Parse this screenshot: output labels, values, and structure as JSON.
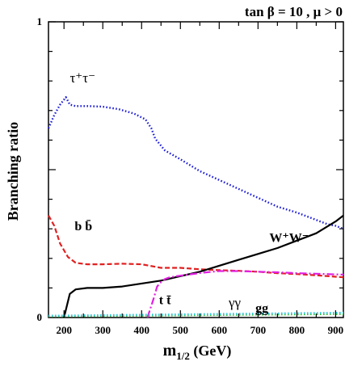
{
  "chart_data": {
    "type": "line",
    "title": "tan β = 10 , μ > 0",
    "xlabel_main": "m",
    "xlabel_sub": "1/2",
    "xlabel_unit": " (GeV)",
    "ylabel": "Branching ratio",
    "xlim": [
      160,
      920
    ],
    "ylim": [
      0,
      1
    ],
    "x_ticks": [
      200,
      300,
      400,
      500,
      600,
      700,
      800,
      900
    ],
    "y_tick_labels": [
      "0",
      "1"
    ],
    "grid": false,
    "series": [
      {
        "name": "τ⁺τ⁻",
        "color": "#1f1fd6",
        "style": "dotted",
        "x": [
          160,
          175,
          190,
          205,
          215,
          230,
          260,
          300,
          340,
          380,
          410,
          425,
          435,
          460,
          500,
          550,
          600,
          650,
          700,
          750,
          800,
          850,
          880,
          900,
          920
        ],
        "y": [
          0.64,
          0.685,
          0.72,
          0.745,
          0.72,
          0.715,
          0.715,
          0.713,
          0.705,
          0.69,
          0.67,
          0.64,
          0.605,
          0.565,
          0.535,
          0.495,
          0.465,
          0.435,
          0.405,
          0.375,
          0.355,
          0.33,
          0.315,
          0.31,
          0.3
        ]
      },
      {
        "name": "b b̄",
        "color": "#e02020",
        "style": "dashed",
        "x": [
          160,
          175,
          190,
          210,
          230,
          260,
          300,
          350,
          400,
          450,
          500,
          550,
          600,
          650,
          700,
          750,
          800,
          850,
          900,
          920
        ],
        "y": [
          0.345,
          0.31,
          0.25,
          0.205,
          0.185,
          0.18,
          0.18,
          0.182,
          0.18,
          0.168,
          0.168,
          0.163,
          0.16,
          0.158,
          0.155,
          0.15,
          0.147,
          0.143,
          0.138,
          0.136
        ]
      },
      {
        "name": "W⁺W⁻",
        "color": "#000000",
        "style": "solid",
        "x": [
          200,
          215,
          230,
          260,
          300,
          350,
          400,
          450,
          500,
          550,
          600,
          650,
          700,
          750,
          800,
          850,
          900,
          920
        ],
        "y": [
          0.0,
          0.08,
          0.095,
          0.1,
          0.1,
          0.105,
          0.115,
          0.125,
          0.14,
          0.155,
          0.175,
          0.195,
          0.215,
          0.235,
          0.26,
          0.285,
          0.325,
          0.345
        ]
      },
      {
        "name": "t t̄",
        "color": "#e020e0",
        "style": "dashdot",
        "x": [
          415,
          430,
          440,
          450,
          460,
          470,
          490,
          520,
          560,
          600,
          650,
          700,
          750,
          800,
          850,
          900,
          920
        ],
        "y": [
          0.0,
          0.06,
          0.105,
          0.12,
          0.13,
          0.135,
          0.14,
          0.145,
          0.152,
          0.157,
          0.157,
          0.155,
          0.153,
          0.15,
          0.148,
          0.146,
          0.145
        ]
      },
      {
        "name": "γγ",
        "color": "#30c030",
        "style": "dotted",
        "x": [
          160,
          920
        ],
        "y": [
          0.004,
          0.012
        ]
      },
      {
        "name": "gg",
        "color": "#30c8d8",
        "style": "dotted",
        "x": [
          160,
          920
        ],
        "y": [
          0.006,
          0.016
        ]
      }
    ],
    "series_labels": [
      {
        "series": "τ⁺τ⁻",
        "text": "τ⁺τ⁻",
        "at": [
          248,
          0.795
        ]
      },
      {
        "series": "b b̄",
        "text": "b b̄",
        "at": [
          250,
          0.295
        ]
      },
      {
        "series": "W⁺W⁻",
        "text": "W⁺W⁻",
        "at": [
          780,
          0.255
        ]
      },
      {
        "series": "t t̄",
        "text": "t t̄",
        "at": [
          460,
          0.045
        ]
      },
      {
        "series": "γγ",
        "text": "γγ",
        "at": [
          640,
          0.035
        ]
      },
      {
        "series": "gg",
        "text": "gg",
        "at": [
          710,
          0.018
        ]
      }
    ]
  }
}
